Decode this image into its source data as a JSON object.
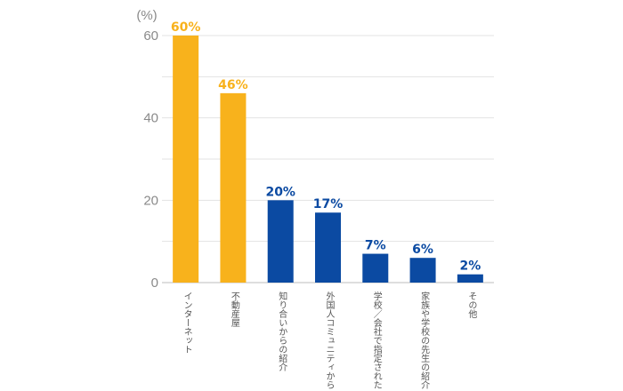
{
  "chart_data": {
    "type": "bar",
    "ylabel": "(%)",
    "ylim": [
      0,
      60
    ],
    "yticks": [
      0,
      20,
      40,
      60
    ],
    "grid": true,
    "categories": [
      "インターネット",
      "不動産屋",
      "知り合いからの紹介",
      "外国人コミュニティから",
      "学校／会社で指定された",
      "家族や学校の先生の紹介",
      "その他"
    ],
    "values": [
      60,
      46,
      20,
      17,
      7,
      6,
      2
    ],
    "data_labels": [
      "60%",
      "46%",
      "20%",
      "17%",
      "7%",
      "6%",
      "2%"
    ],
    "highlight_color": "#f8b21c",
    "base_color": "#0b4aa2",
    "highlighted_indices": [
      0,
      1
    ]
  }
}
